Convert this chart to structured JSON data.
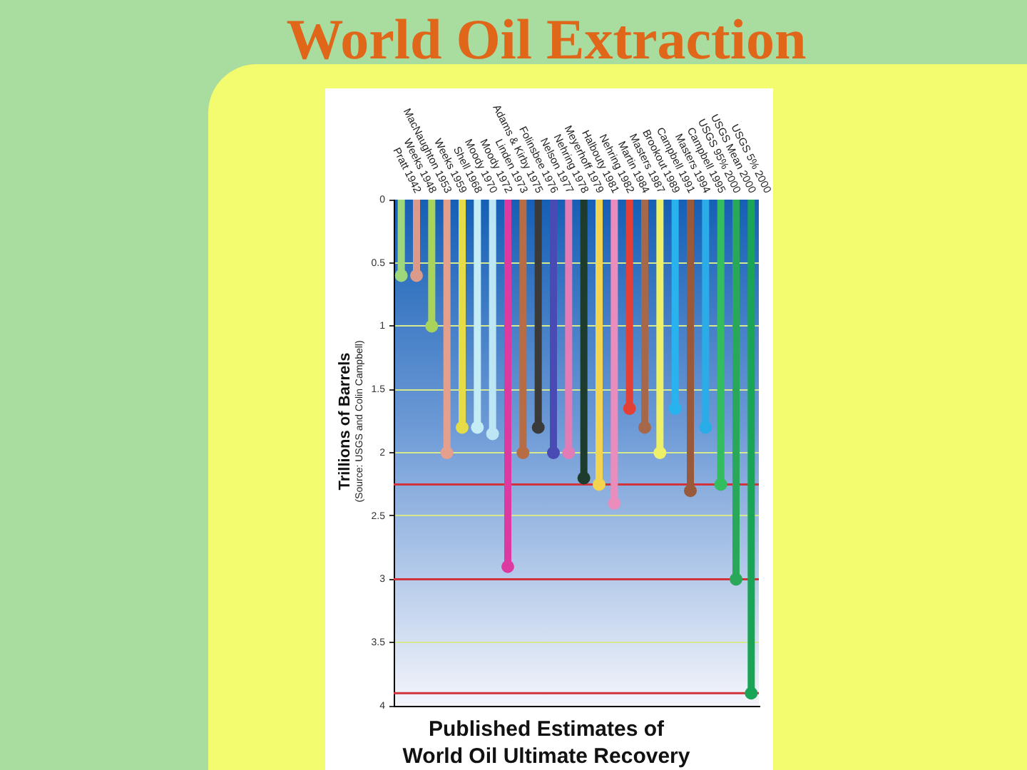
{
  "chart_data": {
    "type": "lollipop",
    "title": "World Oil Extraction",
    "subtitle": "Published Estimates of World Oil Ultimate Recovery",
    "ylabel": "Trillions of Barrels",
    "annotations": [
      "(Source: USGS and Colin Campbell)"
    ],
    "categories": [
      "Pratt 1942",
      "Weeks 1948",
      "MacNaughton 1953",
      "Weeks 1959",
      "Shell 1968",
      "Moody 1970",
      "Moody 1972",
      "Linden 1973",
      "Adams & Kirby 1975",
      "Folinsbee 1976",
      "Nelson 1977",
      "Nehring 1978",
      "Meyerhoff 1979",
      "Halbouty 1981",
      "Nehring 1982",
      "Martin 1984",
      "Masters 1987",
      "Brookout 1989",
      "Campbell 1991",
      "Masters 1994",
      "Campbell 1995",
      "USGS 95% 2000",
      "USGS Mean 2000",
      "USGS 5% 2000"
    ],
    "values": [
      0.6,
      0.6,
      1.0,
      2.0,
      1.8,
      1.8,
      1.85,
      2.9,
      2.0,
      1.8,
      2.0,
      2.0,
      2.2,
      2.25,
      2.4,
      1.65,
      1.8,
      2.0,
      1.65,
      2.3,
      1.8,
      2.25,
      3.0,
      3.9
    ],
    "colors": [
      "#9fd87c",
      "#dc9a8a",
      "#a8d45c",
      "#e4a08c",
      "#e6dc48",
      "#c4ecf4",
      "#bce6f4",
      "#dc3aa0",
      "#b86c44",
      "#3a3a3a",
      "#4a4ab4",
      "#e27cb6",
      "#1e3c2e",
      "#f2d450",
      "#ea8cbc",
      "#e24036",
      "#a6684a",
      "#eef068",
      "#28b2ee",
      "#985a3a",
      "#2aace8",
      "#34bc60",
      "#28a858",
      "#1aa456"
    ],
    "ylim": [
      4,
      0
    ],
    "yticks": [
      0,
      0.5,
      1,
      1.5,
      2,
      2.5,
      3,
      3.5,
      4
    ],
    "grid": "y",
    "marker": "circle",
    "ref_lines": [
      {
        "axis": "y",
        "value": 2.25,
        "color": "#d0343a"
      },
      {
        "axis": "y",
        "value": 3.0,
        "color": "#d0343a"
      },
      {
        "axis": "y",
        "value": 3.9,
        "color": "#d0343a"
      }
    ]
  }
}
